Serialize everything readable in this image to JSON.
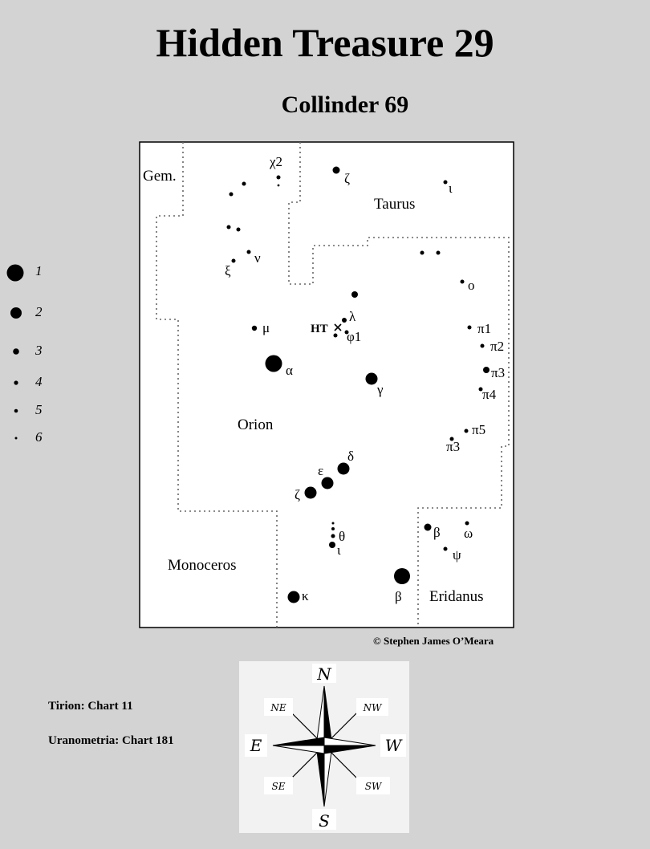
{
  "title": "Hidden Treasure 29",
  "subtitle": "Collinder  69",
  "credit": "© Stephen James O’Meara",
  "references": [
    "Tirion: Chart 11",
    "Uranometria: Chart 181"
  ],
  "legend": {
    "magnitudes": [
      "1",
      "2",
      "3",
      "4",
      "5",
      "6"
    ]
  },
  "constellations": [
    "Gem.",
    "Taurus",
    "Orion",
    "Monoceros",
    "Eridanus"
  ],
  "star_labels": [
    "χ2",
    "ζ",
    "ι",
    "ν",
    "ξ",
    "ο",
    "λ",
    "φ1",
    "μ",
    "π1",
    "π2",
    "π3",
    "π4",
    "π5",
    "π3",
    "α",
    "γ",
    "δ",
    "ε",
    "ζ",
    "θ",
    "ι",
    "β",
    "ω",
    "ψ",
    "β",
    "κ"
  ],
  "object_marker": "HT",
  "compass": {
    "N": "N",
    "NE": "NE",
    "E": "E",
    "SE": "SE",
    "S": "S",
    "SW": "SW",
    "W": "W",
    "NW": "NW"
  },
  "colors": {
    "page": "#d3d3d3",
    "chart_bg": "#ffffff",
    "ink": "#000000",
    "compass_bg": "#f2f2f2"
  }
}
